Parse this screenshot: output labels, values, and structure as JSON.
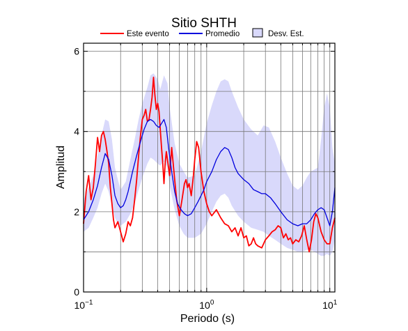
{
  "chart_data": {
    "type": "line",
    "title": "Sitio SHTH",
    "xlabel": "Periodo (s)",
    "ylabel": "Amplitud",
    "xscale": "log",
    "xlim": [
      0.1,
      11
    ],
    "ylim": [
      0,
      6.2
    ],
    "x_ticks": [
      {
        "value": 0.1,
        "base": "10",
        "exp": "−1"
      },
      {
        "value": 1,
        "base": "10",
        "exp": "0"
      },
      {
        "value": 10,
        "base": "10",
        "exp": "1"
      }
    ],
    "y_ticks": [
      {
        "value": 0,
        "label": "0"
      },
      {
        "value": 2,
        "label": "2"
      },
      {
        "value": 4,
        "label": "4"
      },
      {
        "value": 6,
        "label": "6"
      }
    ],
    "grid": true,
    "legend_position": "top",
    "legend": [
      {
        "name": "Este evento",
        "kind": "line",
        "color": "#ff0000"
      },
      {
        "name": "Promedio",
        "kind": "line",
        "color": "#0000dd"
      },
      {
        "name": "Desv. Est.",
        "kind": "box",
        "color": "#d9d9fb"
      }
    ],
    "series": [
      {
        "name": "Este evento",
        "color": "#ff0000",
        "points": [
          [
            0.1,
            1.7
          ],
          [
            0.105,
            2.5
          ],
          [
            0.11,
            2.9
          ],
          [
            0.115,
            2.3
          ],
          [
            0.12,
            2.6
          ],
          [
            0.125,
            3.2
          ],
          [
            0.13,
            3.85
          ],
          [
            0.135,
            3.5
          ],
          [
            0.14,
            3.9
          ],
          [
            0.145,
            4.0
          ],
          [
            0.15,
            3.8
          ],
          [
            0.155,
            3.5
          ],
          [
            0.16,
            3.2
          ],
          [
            0.165,
            2.6
          ],
          [
            0.17,
            2.2
          ],
          [
            0.175,
            1.8
          ],
          [
            0.18,
            1.6
          ],
          [
            0.19,
            1.75
          ],
          [
            0.2,
            1.5
          ],
          [
            0.21,
            1.25
          ],
          [
            0.22,
            1.45
          ],
          [
            0.23,
            1.75
          ],
          [
            0.24,
            1.65
          ],
          [
            0.25,
            1.85
          ],
          [
            0.26,
            2.3
          ],
          [
            0.27,
            2.8
          ],
          [
            0.28,
            3.4
          ],
          [
            0.29,
            3.9
          ],
          [
            0.3,
            4.3
          ],
          [
            0.31,
            4.4
          ],
          [
            0.32,
            4.55
          ],
          [
            0.33,
            4.25
          ],
          [
            0.34,
            4.3
          ],
          [
            0.35,
            4.55
          ],
          [
            0.36,
            4.85
          ],
          [
            0.37,
            5.35
          ],
          [
            0.38,
            4.9
          ],
          [
            0.39,
            4.55
          ],
          [
            0.4,
            4.7
          ],
          [
            0.41,
            4.5
          ],
          [
            0.42,
            4.05
          ],
          [
            0.43,
            3.6
          ],
          [
            0.44,
            3.2
          ],
          [
            0.45,
            2.7
          ],
          [
            0.46,
            3.2
          ],
          [
            0.47,
            3.5
          ],
          [
            0.48,
            3.3
          ],
          [
            0.5,
            2.9
          ],
          [
            0.52,
            3.6
          ],
          [
            0.55,
            2.8
          ],
          [
            0.57,
            2.3
          ],
          [
            0.6,
            1.9
          ],
          [
            0.63,
            2.3
          ],
          [
            0.66,
            2.7
          ],
          [
            0.68,
            2.8
          ],
          [
            0.7,
            2.6
          ],
          [
            0.72,
            2.7
          ],
          [
            0.75,
            2.4
          ],
          [
            0.78,
            2.9
          ],
          [
            0.8,
            3.3
          ],
          [
            0.83,
            3.75
          ],
          [
            0.86,
            3.6
          ],
          [
            0.9,
            3.0
          ],
          [
            0.95,
            2.5
          ],
          [
            1.0,
            2.2
          ],
          [
            1.05,
            2.0
          ],
          [
            1.1,
            1.9
          ],
          [
            1.2,
            2.05
          ],
          [
            1.3,
            1.85
          ],
          [
            1.4,
            1.7
          ],
          [
            1.5,
            1.65
          ],
          [
            1.6,
            1.5
          ],
          [
            1.7,
            1.6
          ],
          [
            1.8,
            1.4
          ],
          [
            1.9,
            1.6
          ],
          [
            2.0,
            1.35
          ],
          [
            2.1,
            1.4
          ],
          [
            2.2,
            1.15
          ],
          [
            2.3,
            1.2
          ],
          [
            2.4,
            1.35
          ],
          [
            2.5,
            1.2
          ],
          [
            2.6,
            1.15
          ],
          [
            2.8,
            1.1
          ],
          [
            3.0,
            1.3
          ],
          [
            3.2,
            1.4
          ],
          [
            3.4,
            1.5
          ],
          [
            3.6,
            1.55
          ],
          [
            3.8,
            1.65
          ],
          [
            4.0,
            1.6
          ],
          [
            4.2,
            1.35
          ],
          [
            4.4,
            1.45
          ],
          [
            4.6,
            1.3
          ],
          [
            4.8,
            1.35
          ],
          [
            5.0,
            1.2
          ],
          [
            5.3,
            1.3
          ],
          [
            5.6,
            1.25
          ],
          [
            5.9,
            1.4
          ],
          [
            6.2,
            1.65
          ],
          [
            6.5,
            1.3
          ],
          [
            6.8,
            1.0
          ],
          [
            7.1,
            1.3
          ],
          [
            7.4,
            1.75
          ],
          [
            7.7,
            1.95
          ],
          [
            8.0,
            1.85
          ],
          [
            8.5,
            1.5
          ],
          [
            9.0,
            1.3
          ],
          [
            9.5,
            1.2
          ],
          [
            10.0,
            1.2
          ],
          [
            10.5,
            1.6
          ],
          [
            11.0,
            1.85
          ]
        ]
      },
      {
        "name": "Promedio",
        "color": "#0000dd",
        "points": [
          [
            0.1,
            1.8
          ],
          [
            0.11,
            2.0
          ],
          [
            0.12,
            2.3
          ],
          [
            0.13,
            2.65
          ],
          [
            0.14,
            3.1
          ],
          [
            0.15,
            3.45
          ],
          [
            0.16,
            3.3
          ],
          [
            0.17,
            2.9
          ],
          [
            0.18,
            2.4
          ],
          [
            0.19,
            2.2
          ],
          [
            0.2,
            2.1
          ],
          [
            0.21,
            2.15
          ],
          [
            0.22,
            2.3
          ],
          [
            0.23,
            2.5
          ],
          [
            0.24,
            2.75
          ],
          [
            0.25,
            3.0
          ],
          [
            0.27,
            3.4
          ],
          [
            0.29,
            3.75
          ],
          [
            0.31,
            4.05
          ],
          [
            0.33,
            4.25
          ],
          [
            0.35,
            4.3
          ],
          [
            0.37,
            4.25
          ],
          [
            0.39,
            4.15
          ],
          [
            0.41,
            4.1
          ],
          [
            0.43,
            4.2
          ],
          [
            0.45,
            4.3
          ],
          [
            0.47,
            4.1
          ],
          [
            0.49,
            3.6
          ],
          [
            0.52,
            3.0
          ],
          [
            0.55,
            2.5
          ],
          [
            0.58,
            2.2
          ],
          [
            0.62,
            2.05
          ],
          [
            0.66,
            1.95
          ],
          [
            0.7,
            1.9
          ],
          [
            0.75,
            1.95
          ],
          [
            0.8,
            2.1
          ],
          [
            0.85,
            2.25
          ],
          [
            0.9,
            2.4
          ],
          [
            0.95,
            2.55
          ],
          [
            1.0,
            2.75
          ],
          [
            1.1,
            3.0
          ],
          [
            1.2,
            3.3
          ],
          [
            1.3,
            3.5
          ],
          [
            1.4,
            3.6
          ],
          [
            1.5,
            3.55
          ],
          [
            1.6,
            3.35
          ],
          [
            1.7,
            3.1
          ],
          [
            1.8,
            2.95
          ],
          [
            2.0,
            2.8
          ],
          [
            2.2,
            2.7
          ],
          [
            2.4,
            2.55
          ],
          [
            2.6,
            2.5
          ],
          [
            2.8,
            2.45
          ],
          [
            3.0,
            2.45
          ],
          [
            3.3,
            2.35
          ],
          [
            3.6,
            2.2
          ],
          [
            4.0,
            2.0
          ],
          [
            4.5,
            1.8
          ],
          [
            5.0,
            1.7
          ],
          [
            5.5,
            1.65
          ],
          [
            6.0,
            1.7
          ],
          [
            6.5,
            1.7
          ],
          [
            7.0,
            1.8
          ],
          [
            7.5,
            1.95
          ],
          [
            8.0,
            2.05
          ],
          [
            8.5,
            2.1
          ],
          [
            9.0,
            2.05
          ],
          [
            9.5,
            1.85
          ],
          [
            10.0,
            1.65
          ],
          [
            10.5,
            2.0
          ],
          [
            11.0,
            2.6
          ]
        ]
      }
    ],
    "band": {
      "name": "Desv. Est.",
      "color": "#d9d9fb",
      "upper": [
        [
          0.1,
          2.3
        ],
        [
          0.11,
          2.6
        ],
        [
          0.12,
          2.9
        ],
        [
          0.13,
          3.4
        ],
        [
          0.14,
          3.9
        ],
        [
          0.15,
          4.3
        ],
        [
          0.16,
          4.25
        ],
        [
          0.17,
          3.8
        ],
        [
          0.18,
          3.1
        ],
        [
          0.19,
          2.8
        ],
        [
          0.2,
          2.55
        ],
        [
          0.22,
          2.75
        ],
        [
          0.24,
          3.3
        ],
        [
          0.26,
          3.8
        ],
        [
          0.28,
          4.3
        ],
        [
          0.3,
          4.7
        ],
        [
          0.33,
          5.1
        ],
        [
          0.35,
          5.4
        ],
        [
          0.37,
          5.45
        ],
        [
          0.4,
          5.3
        ],
        [
          0.42,
          5.05
        ],
        [
          0.45,
          5.4
        ],
        [
          0.48,
          5.2
        ],
        [
          0.5,
          4.6
        ],
        [
          0.55,
          3.7
        ],
        [
          0.6,
          3.2
        ],
        [
          0.65,
          3.0
        ],
        [
          0.7,
          2.85
        ],
        [
          0.8,
          2.9
        ],
        [
          0.9,
          3.5
        ],
        [
          1.0,
          4.2
        ],
        [
          1.1,
          4.65
        ],
        [
          1.2,
          5.0
        ],
        [
          1.3,
          5.25
        ],
        [
          1.4,
          5.3
        ],
        [
          1.5,
          5.25
        ],
        [
          1.6,
          5.0
        ],
        [
          1.8,
          4.6
        ],
        [
          2.0,
          4.3
        ],
        [
          2.3,
          4.05
        ],
        [
          2.6,
          3.9
        ],
        [
          2.9,
          4.15
        ],
        [
          3.2,
          4.1
        ],
        [
          3.6,
          3.75
        ],
        [
          4.0,
          3.35
        ],
        [
          4.5,
          2.95
        ],
        [
          5.0,
          2.65
        ],
        [
          5.5,
          2.55
        ],
        [
          6.0,
          2.65
        ],
        [
          6.5,
          2.85
        ],
        [
          7.0,
          3.0
        ],
        [
          7.5,
          3.05
        ],
        [
          8.0,
          3.1
        ],
        [
          8.5,
          3.8
        ],
        [
          9.0,
          4.6
        ],
        [
          9.5,
          4.95
        ],
        [
          10.0,
          4.6
        ],
        [
          10.5,
          3.6
        ],
        [
          11.0,
          3.2
        ]
      ],
      "lower": [
        [
          0.1,
          1.5
        ],
        [
          0.11,
          1.6
        ],
        [
          0.12,
          1.85
        ],
        [
          0.13,
          2.1
        ],
        [
          0.14,
          2.45
        ],
        [
          0.15,
          2.7
        ],
        [
          0.16,
          2.5
        ],
        [
          0.17,
          2.15
        ],
        [
          0.18,
          1.85
        ],
        [
          0.19,
          1.7
        ],
        [
          0.2,
          1.65
        ],
        [
          0.22,
          1.75
        ],
        [
          0.24,
          1.95
        ],
        [
          0.26,
          2.2
        ],
        [
          0.28,
          2.55
        ],
        [
          0.3,
          2.85
        ],
        [
          0.33,
          3.2
        ],
        [
          0.35,
          3.35
        ],
        [
          0.37,
          3.3
        ],
        [
          0.4,
          3.2
        ],
        [
          0.42,
          3.15
        ],
        [
          0.45,
          3.25
        ],
        [
          0.48,
          3.1
        ],
        [
          0.5,
          2.65
        ],
        [
          0.55,
          2.05
        ],
        [
          0.6,
          1.65
        ],
        [
          0.65,
          1.45
        ],
        [
          0.7,
          1.35
        ],
        [
          0.8,
          1.35
        ],
        [
          0.9,
          1.45
        ],
        [
          1.0,
          1.7
        ],
        [
          1.1,
          2.0
        ],
        [
          1.2,
          2.25
        ],
        [
          1.3,
          2.4
        ],
        [
          1.4,
          2.45
        ],
        [
          1.5,
          2.35
        ],
        [
          1.6,
          2.15
        ],
        [
          1.8,
          1.9
        ],
        [
          2.0,
          1.75
        ],
        [
          2.3,
          1.6
        ],
        [
          2.6,
          1.55
        ],
        [
          2.9,
          1.5
        ],
        [
          3.2,
          1.4
        ],
        [
          3.6,
          1.3
        ],
        [
          4.0,
          1.2
        ],
        [
          4.5,
          1.1
        ],
        [
          5.0,
          1.05
        ],
        [
          5.5,
          1.0
        ],
        [
          6.0,
          1.0
        ],
        [
          6.5,
          1.05
        ],
        [
          7.0,
          1.05
        ],
        [
          7.5,
          1.0
        ],
        [
          8.0,
          0.95
        ],
        [
          8.5,
          0.9
        ],
        [
          9.0,
          0.9
        ],
        [
          9.5,
          0.95
        ],
        [
          10.0,
          0.9
        ],
        [
          10.5,
          1.0
        ],
        [
          11.0,
          1.3
        ]
      ]
    }
  }
}
